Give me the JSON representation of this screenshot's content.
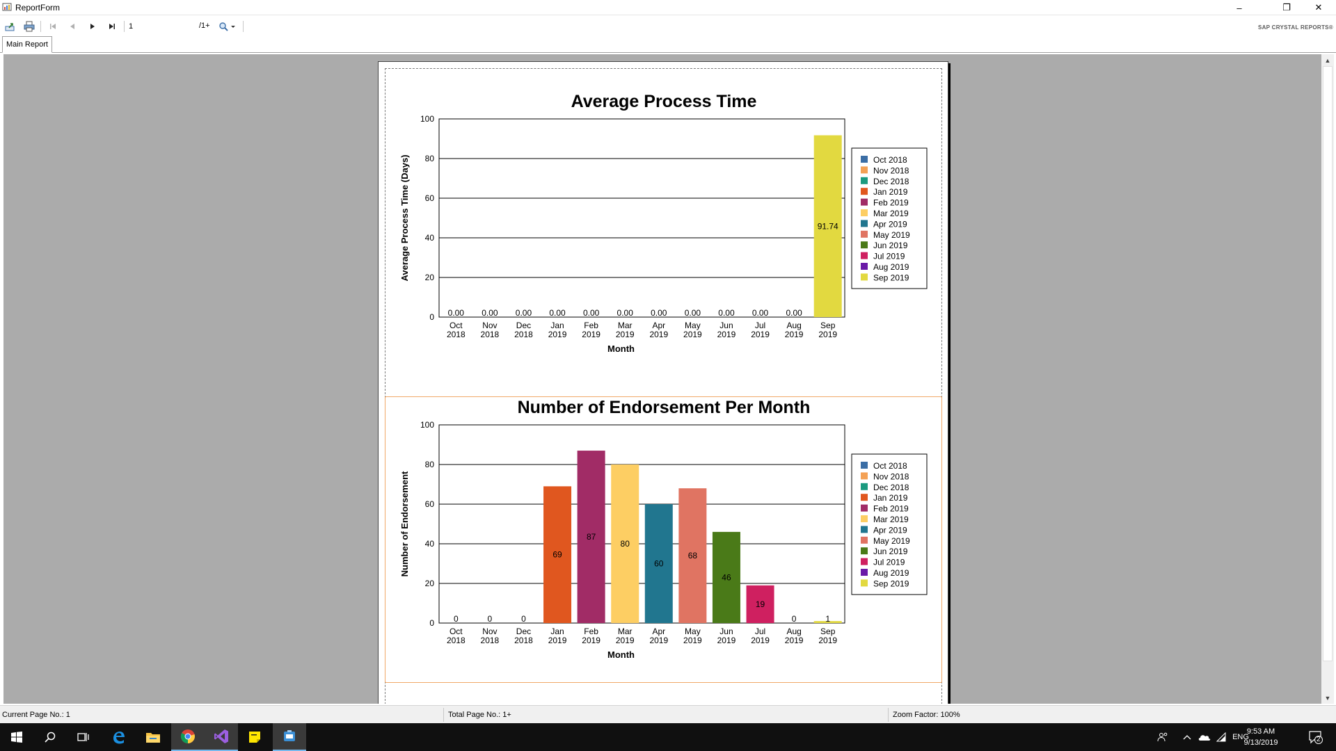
{
  "window": {
    "title": "ReportForm",
    "controls": {
      "minimize": "–",
      "maximize": "❐",
      "close": "✕"
    }
  },
  "toolbar": {
    "page_value": "1",
    "page_total": "/1+",
    "brand": "SAP CRYSTAL REPORTS®"
  },
  "tabs": [
    {
      "label": "Main Report"
    }
  ],
  "status": {
    "current_page": "Current Page No.: 1",
    "total_page": "Total Page No.: 1+",
    "zoom": "Zoom Factor: 100%"
  },
  "taskbar": {
    "apps": [
      "start-icon",
      "search-icon",
      "task-view-icon",
      "edge-icon",
      "file-explorer-icon",
      "chrome-icon",
      "visual-studio-icon",
      "sticky-notes-icon",
      "app-icon"
    ],
    "language": "ENG",
    "time": "9:53 AM",
    "date": "9/13/2019",
    "notification_count": "2"
  },
  "colors": {
    "Oct 2018": "#3b6ea5",
    "Nov 2018": "#f4a155",
    "Dec 2018": "#1b9a7f",
    "Jan 2019": "#e0571f",
    "Feb 2019": "#a12c66",
    "Mar 2019": "#fdce63",
    "Apr 2019": "#21768f",
    "May 2019": "#e07462",
    "Jun 2019": "#4a7a18",
    "Jul 2019": "#cf2060",
    "Aug 2019": "#6a1aa7",
    "Sep 2019": "#e2d940"
  },
  "chart_data": [
    {
      "type": "bar",
      "title": "Average Process Time",
      "xlabel": "Month",
      "ylabel": "Average Process Time (Days)",
      "ylim": [
        0,
        100
      ],
      "yticks": [
        "0",
        "20",
        "40",
        "60",
        "80",
        "100"
      ],
      "grid": true,
      "legend_position": "right",
      "categories": [
        "Oct 2018",
        "Nov 2018",
        "Dec 2018",
        "Jan 2019",
        "Feb 2019",
        "Mar 2019",
        "Apr 2019",
        "May 2019",
        "Jun 2019",
        "Jul 2019",
        "Aug 2019",
        "Sep 2019"
      ],
      "tick_labels": [
        [
          "Oct",
          "2018"
        ],
        [
          "Nov",
          "2018"
        ],
        [
          "Dec",
          "2018"
        ],
        [
          "Jan",
          "2019"
        ],
        [
          "Feb",
          "2019"
        ],
        [
          "Mar",
          "2019"
        ],
        [
          "Apr",
          "2019"
        ],
        [
          "May",
          "2019"
        ],
        [
          "Jun",
          "2019"
        ],
        [
          "Jul",
          "2019"
        ],
        [
          "Aug",
          "2019"
        ],
        [
          "Sep",
          "2019"
        ]
      ],
      "values": [
        0,
        0,
        0,
        0,
        0,
        0,
        0,
        0,
        0,
        0,
        0,
        91.74
      ],
      "data_labels": [
        "0.00",
        "0.00",
        "0.00",
        "0.00",
        "0.00",
        "0.00",
        "0.00",
        "0.00",
        "0.00",
        "0.00",
        "0.00",
        "91.74"
      ],
      "legend": [
        "Oct 2018",
        "Nov 2018",
        "Dec 2018",
        "Jan 2019",
        "Feb 2019",
        "Mar 2019",
        "Apr 2019",
        "May 2019",
        "Jun 2019",
        "Jul 2019",
        "Aug 2019",
        "Sep 2019"
      ]
    },
    {
      "type": "bar",
      "title": "Number of Endorsement Per Month",
      "xlabel": "Month",
      "ylabel": "Number of Endorsement",
      "ylim": [
        0,
        100
      ],
      "yticks": [
        "0",
        "20",
        "40",
        "60",
        "80",
        "100"
      ],
      "grid": true,
      "legend_position": "right",
      "categories": [
        "Oct 2018",
        "Nov 2018",
        "Dec 2018",
        "Jan 2019",
        "Feb 2019",
        "Mar 2019",
        "Apr 2019",
        "May 2019",
        "Jun 2019",
        "Jul 2019",
        "Aug 2019",
        "Sep 2019"
      ],
      "tick_labels": [
        [
          "Oct",
          "2018"
        ],
        [
          "Nov",
          "2018"
        ],
        [
          "Dec",
          "2018"
        ],
        [
          "Jan",
          "2019"
        ],
        [
          "Feb",
          "2019"
        ],
        [
          "Mar",
          "2019"
        ],
        [
          "Apr",
          "2019"
        ],
        [
          "May",
          "2019"
        ],
        [
          "Jun",
          "2019"
        ],
        [
          "Jul",
          "2019"
        ],
        [
          "Aug",
          "2019"
        ],
        [
          "Sep",
          "2019"
        ]
      ],
      "values": [
        0,
        0,
        0,
        69,
        87,
        80,
        60,
        68,
        46,
        19,
        0,
        1
      ],
      "data_labels": [
        "0",
        "0",
        "0",
        "69",
        "87",
        "80",
        "60",
        "68",
        "46",
        "19",
        "0",
        "1"
      ],
      "legend": [
        "Oct 2018",
        "Nov 2018",
        "Dec 2018",
        "Jan 2019",
        "Feb 2019",
        "Mar 2019",
        "Apr 2019",
        "May 2019",
        "Jun 2019",
        "Jul 2019",
        "Aug 2019",
        "Sep 2019"
      ]
    }
  ]
}
